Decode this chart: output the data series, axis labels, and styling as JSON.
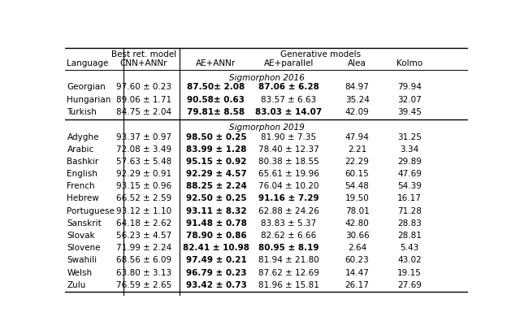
{
  "header_row1_left": "Best ret. model",
  "header_row1_right": "Generative models",
  "header_row2": [
    "Language",
    "CNN+ANNr",
    "AE+ANNr",
    "AE+parallel",
    "Alea",
    "Kolmo"
  ],
  "section1_title": "Sigmorphon 2016",
  "section1_rows": [
    [
      "Georgian",
      "97.60 ± 0.23",
      "87.50± 2.08",
      "87.06 ± 6.28",
      "84.97",
      "79.94"
    ],
    [
      "Hungarian",
      "89.06 ± 1.71",
      "90.58± 0.63",
      "83.57 ± 6.63",
      "35.24",
      "32.07"
    ],
    [
      "Turkish",
      "84.75 ± 2.04",
      "79.81± 8.58",
      "83.03 ± 14.07",
      "42.09",
      "39.45"
    ]
  ],
  "section1_bold": [
    [
      false,
      false,
      true,
      true,
      false,
      false
    ],
    [
      false,
      false,
      true,
      false,
      false,
      false
    ],
    [
      false,
      false,
      true,
      true,
      false,
      false
    ]
  ],
  "section2_title": "Sigmorphon 2019",
  "section2_rows": [
    [
      "Adyghe",
      "93.37 ± 0.97",
      "98.50 ± 0.25",
      "81.90 ± 7.35",
      "47.94",
      "31.25"
    ],
    [
      "Arabic",
      "72.08 ± 3.49",
      "83.99 ± 1.28",
      "78.40 ± 12.37",
      "2.21",
      "3.34"
    ],
    [
      "Bashkir",
      "57.63 ± 5.48",
      "95.15 ± 0.92",
      "80.38 ± 18.55",
      "22.29",
      "29.89"
    ],
    [
      "English",
      "92.29 ± 0.91",
      "92.29 ± 4.57",
      "65.61 ± 19.96",
      "60.15",
      "47.69"
    ],
    [
      "French",
      "93.15 ± 0.96",
      "88.25 ± 2.24",
      "76.04 ± 10.20",
      "54.48",
      "54.39"
    ],
    [
      "Hebrew",
      "66.52 ± 2.59",
      "92.50 ± 0.25",
      "91.16 ± 7.29",
      "19.50",
      "16.17"
    ],
    [
      "Portuguese",
      "93.12 ± 1.10",
      "93.11 ± 8.32",
      "62.88 ± 24.26",
      "78.01",
      "71.28"
    ],
    [
      "Sanskrit",
      "64.18 ± 2.62",
      "91.48 ± 0.78",
      "83.83 ± 5.37",
      "42.80",
      "28.83"
    ],
    [
      "Slovak",
      "56.23 ± 4.57",
      "78.90 ± 0.86",
      "82.62 ± 6.66",
      "30.66",
      "28.81"
    ],
    [
      "Slovene",
      "71.99 ± 2.24",
      "82.41 ± 10.98",
      "80.95 ± 8.19",
      "2.64",
      "5.43"
    ],
    [
      "Swahili",
      "68.56 ± 6.09",
      "97.49 ± 0.21",
      "81.94 ± 21.80",
      "60.23",
      "43.02"
    ],
    [
      "Welsh",
      "63.80 ± 3.13",
      "96.79 ± 0.23",
      "87.62 ± 12.69",
      "14.47",
      "19.15"
    ],
    [
      "Zulu",
      "76.59 ± 2.65",
      "93.42 ± 0.73",
      "81.96 ± 15.81",
      "26.17",
      "27.69"
    ]
  ],
  "section2_bold": [
    [
      false,
      false,
      true,
      false,
      false,
      false
    ],
    [
      false,
      false,
      true,
      false,
      false,
      false
    ],
    [
      false,
      false,
      true,
      false,
      false,
      false
    ],
    [
      false,
      false,
      true,
      false,
      false,
      false
    ],
    [
      false,
      false,
      true,
      false,
      false,
      false
    ],
    [
      false,
      false,
      true,
      true,
      false,
      false
    ],
    [
      false,
      false,
      true,
      false,
      false,
      false
    ],
    [
      false,
      false,
      true,
      false,
      false,
      false
    ],
    [
      false,
      false,
      true,
      false,
      false,
      false
    ],
    [
      false,
      false,
      true,
      true,
      false,
      false
    ],
    [
      false,
      false,
      true,
      false,
      false,
      false
    ],
    [
      false,
      false,
      true,
      false,
      false,
      false
    ],
    [
      false,
      false,
      true,
      false,
      false,
      false
    ]
  ],
  "figsize": [
    6.4,
    4.11
  ],
  "dpi": 100,
  "font_size": 7.5
}
